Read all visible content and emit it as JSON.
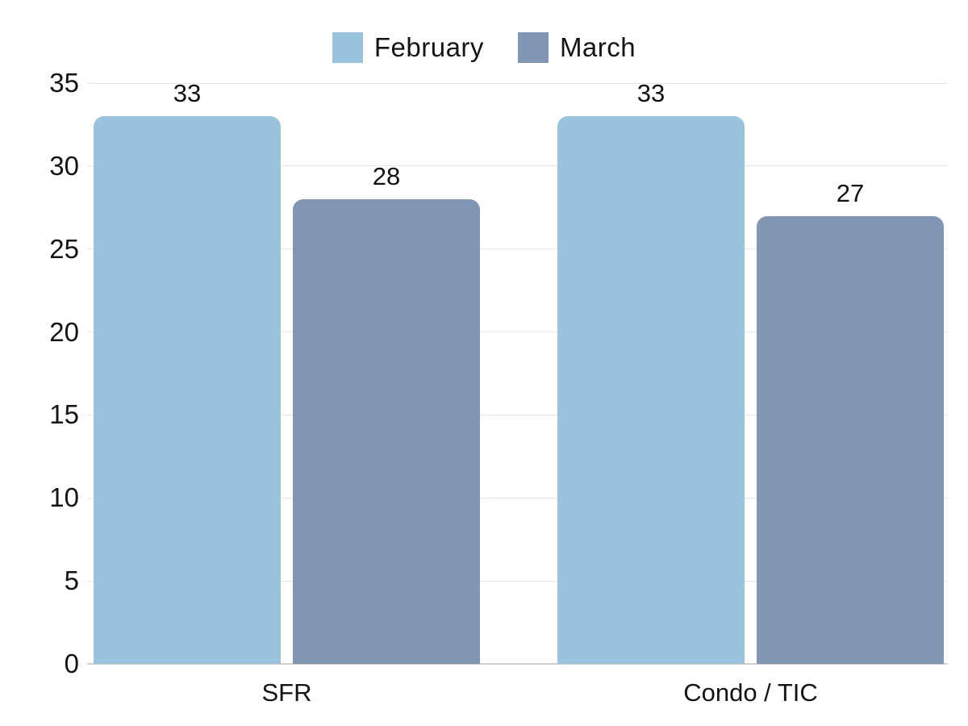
{
  "chart_data": {
    "type": "bar",
    "title": "",
    "xlabel": "",
    "ylabel": "",
    "categories": [
      "SFR",
      "Condo / TIC"
    ],
    "series": [
      {
        "name": "February",
        "color": "#9ac3dd",
        "values": [
          33,
          33
        ]
      },
      {
        "name": "March",
        "color": "#8096b4",
        "values": [
          28,
          27
        ]
      }
    ],
    "ylim": [
      0,
      35
    ],
    "yticks": [
      0,
      5,
      10,
      15,
      20,
      25,
      30,
      35
    ],
    "grid": true,
    "legend_position": "top-center",
    "value_labels": [
      [
        "33",
        "28"
      ],
      [
        "33",
        "27"
      ]
    ]
  },
  "colors": {
    "february_bar": "#9ac3dd",
    "march_bar": "#8096b4",
    "gridline": "#e4e4e4",
    "axis_line": "#cfcfcf",
    "text": "#141414",
    "background": "#ffffff"
  }
}
